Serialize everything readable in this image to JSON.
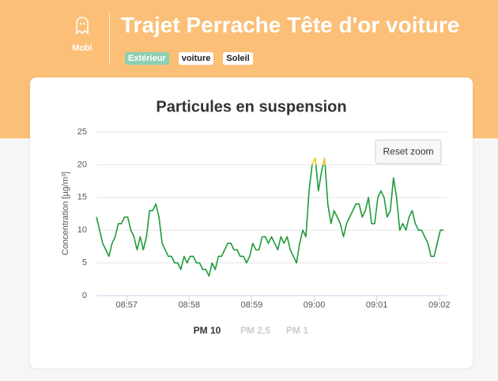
{
  "app": {
    "name": "Mobi"
  },
  "header": {
    "title": "Trajet Perrache Tête d'or voiture",
    "tags": [
      "Extérieur",
      "voiture",
      "Soleil"
    ]
  },
  "buttons": {
    "reset_zoom": "Reset zoom"
  },
  "chart_data": {
    "type": "line",
    "title": "Particules en suspension",
    "y_label": "Concentration [µg/m³]",
    "x": [
      32191,
      32194,
      32197,
      32200,
      32203,
      32206,
      32209,
      32212,
      32215,
      32218,
      32221,
      32224,
      32227,
      32230,
      32233,
      32236,
      32239,
      32242,
      32245,
      32248,
      32251,
      32254,
      32257,
      32260,
      32263,
      32266,
      32269,
      32272,
      32275,
      32278,
      32281,
      32284,
      32287,
      32290,
      32293,
      32296,
      32299,
      32302,
      32305,
      32308,
      32311,
      32314,
      32317,
      32320,
      32323,
      32326,
      32329,
      32332,
      32335,
      32338,
      32341,
      32344,
      32347,
      32350,
      32353,
      32356,
      32359,
      32362,
      32365,
      32368,
      32371,
      32374,
      32377,
      32380,
      32383,
      32386,
      32389,
      32392,
      32395,
      32398,
      32401,
      32404,
      32407,
      32410,
      32413,
      32416,
      32419,
      32422,
      32425,
      32428,
      32431,
      32434,
      32437,
      32440,
      32443,
      32446,
      32449,
      32452,
      32455,
      32458,
      32461,
      32464,
      32467,
      32470,
      32473,
      32476,
      32479,
      32482,
      32485,
      32488,
      32491,
      32494,
      32497,
      32500,
      32503,
      32506,
      32509,
      32512,
      32515,
      32518,
      32521,
      32524
    ],
    "series": [
      {
        "name": "PM 10",
        "color": "#1e9b3a",
        "values": [
          12,
          10,
          8,
          7,
          6,
          8,
          9,
          11,
          11,
          12,
          12,
          10,
          9,
          7,
          9,
          7,
          9,
          13,
          13,
          14,
          12,
          8,
          7,
          6,
          6,
          5,
          5,
          4,
          6,
          5,
          6,
          6,
          5,
          5,
          4,
          4,
          3,
          5,
          4,
          6,
          6,
          7,
          8,
          8,
          7,
          7,
          6,
          6,
          5,
          6,
          8,
          7,
          7,
          9,
          9,
          8,
          9,
          8,
          7,
          9,
          8,
          9,
          7,
          6,
          5,
          8,
          10,
          9,
          16,
          20,
          21,
          16,
          19,
          21,
          14,
          11,
          13,
          12,
          11,
          9,
          11,
          12,
          13,
          14,
          14,
          12,
          13,
          15,
          11,
          11,
          15,
          16,
          15,
          12,
          13,
          18,
          15,
          10,
          11,
          10,
          12,
          13,
          11,
          10,
          10,
          9,
          8,
          6,
          6,
          8,
          10,
          10
        ]
      },
      {
        "name": "PM 2,5",
        "visible": false
      },
      {
        "name": "PM 1",
        "visible": false
      }
    ],
    "threshold": {
      "value": 20,
      "color": "#f0c419"
    },
    "xlim": [
      32191,
      32527
    ],
    "xticks": [
      {
        "value": 32220,
        "label": "08:57"
      },
      {
        "value": 32280,
        "label": "08:58"
      },
      {
        "value": 32340,
        "label": "08:59"
      },
      {
        "value": 32400,
        "label": "09:00"
      },
      {
        "value": 32460,
        "label": "09:01"
      },
      {
        "value": 32520,
        "label": "09:02"
      }
    ],
    "ylim": [
      0,
      25
    ],
    "yticks": [
      0,
      5,
      10,
      15,
      20,
      25
    ],
    "grid": true
  }
}
